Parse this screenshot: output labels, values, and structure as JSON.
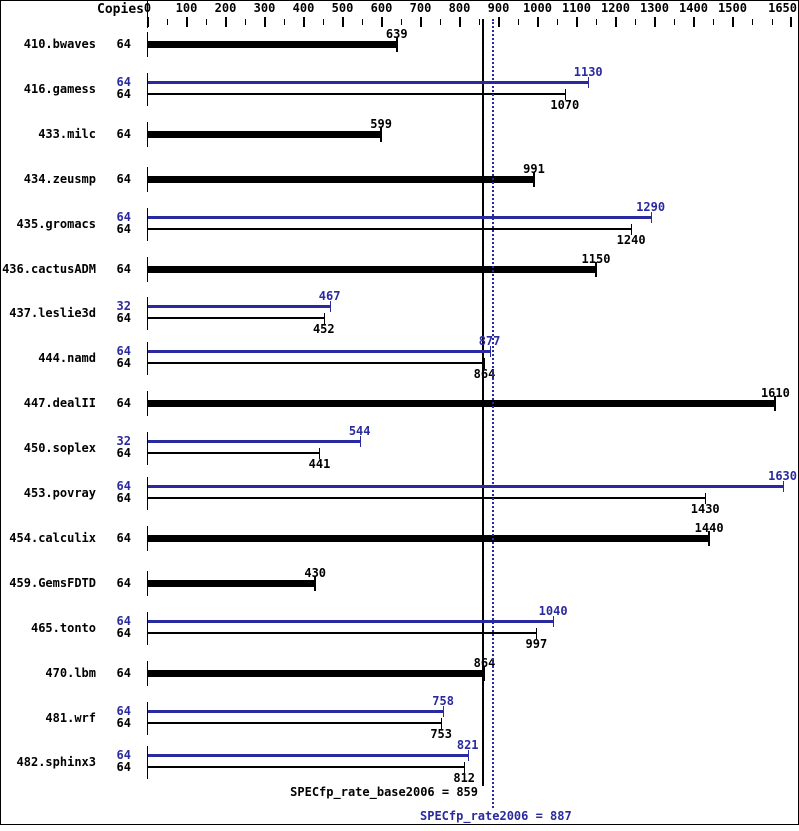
{
  "header": {
    "copies_label": "Copies"
  },
  "colors": {
    "base": "#000000",
    "peak": "#2a2aa0",
    "background": "#ffffff",
    "frame": "#000000"
  },
  "summary": {
    "base_text": "SPECfp_rate_base2006 = 859",
    "peak_text": "SPECfp_rate2006 = 887"
  },
  "chart_data": {
    "type": "bar",
    "orientation": "horizontal",
    "xlabel": "",
    "ylabel": "",
    "axis": {
      "min": 0,
      "max": 1650,
      "tick_labels": [
        0,
        100,
        200,
        300,
        400,
        500,
        600,
        700,
        800,
        900,
        1000,
        1100,
        1200,
        1300,
        1400,
        1500,
        1650
      ],
      "minor_step": 50
    },
    "copies_column_header": "Copies",
    "benchmarks": [
      {
        "name": "410.bwaves",
        "runs": [
          {
            "kind": "base",
            "copies": "64",
            "value": 639,
            "single": true
          }
        ]
      },
      {
        "name": "416.gamess",
        "runs": [
          {
            "kind": "peak",
            "copies": "64",
            "value": 1130
          },
          {
            "kind": "base",
            "copies": "64",
            "value": 1070
          }
        ]
      },
      {
        "name": "433.milc",
        "runs": [
          {
            "kind": "base",
            "copies": "64",
            "value": 599,
            "single": true
          }
        ]
      },
      {
        "name": "434.zeusmp",
        "runs": [
          {
            "kind": "base",
            "copies": "64",
            "value": 991,
            "single": true
          }
        ]
      },
      {
        "name": "435.gromacs",
        "runs": [
          {
            "kind": "peak",
            "copies": "64",
            "value": 1290
          },
          {
            "kind": "base",
            "copies": "64",
            "value": 1240
          }
        ]
      },
      {
        "name": "436.cactusADM",
        "runs": [
          {
            "kind": "base",
            "copies": "64",
            "value": 1150,
            "single": true
          }
        ]
      },
      {
        "name": "437.leslie3d",
        "runs": [
          {
            "kind": "peak",
            "copies": "32",
            "value": 467
          },
          {
            "kind": "base",
            "copies": "64",
            "value": 452
          }
        ]
      },
      {
        "name": "444.namd",
        "runs": [
          {
            "kind": "peak",
            "copies": "64",
            "value": 877
          },
          {
            "kind": "base",
            "copies": "64",
            "value": 864
          }
        ]
      },
      {
        "name": "447.dealII",
        "runs": [
          {
            "kind": "base",
            "copies": "64",
            "value": 1610,
            "single": true
          }
        ]
      },
      {
        "name": "450.soplex",
        "runs": [
          {
            "kind": "peak",
            "copies": "32",
            "value": 544
          },
          {
            "kind": "base",
            "copies": "64",
            "value": 441
          }
        ]
      },
      {
        "name": "453.povray",
        "runs": [
          {
            "kind": "peak",
            "copies": "64",
            "value": 1630
          },
          {
            "kind": "base",
            "copies": "64",
            "value": 1430
          }
        ]
      },
      {
        "name": "454.calculix",
        "runs": [
          {
            "kind": "base",
            "copies": "64",
            "value": 1440,
            "single": true
          }
        ]
      },
      {
        "name": "459.GemsFDTD",
        "runs": [
          {
            "kind": "base",
            "copies": "64",
            "value": 430,
            "single": true
          }
        ]
      },
      {
        "name": "465.tonto",
        "runs": [
          {
            "kind": "peak",
            "copies": "64",
            "value": 1040
          },
          {
            "kind": "base",
            "copies": "64",
            "value": 997
          }
        ]
      },
      {
        "name": "470.lbm",
        "runs": [
          {
            "kind": "base",
            "copies": "64",
            "value": 864,
            "single": true
          }
        ]
      },
      {
        "name": "481.wrf",
        "runs": [
          {
            "kind": "peak",
            "copies": "64",
            "value": 758
          },
          {
            "kind": "base",
            "copies": "64",
            "value": 753
          }
        ]
      },
      {
        "name": "482.sphinx3",
        "runs": [
          {
            "kind": "peak",
            "copies": "64",
            "value": 821
          },
          {
            "kind": "base",
            "copies": "64",
            "value": 812
          }
        ]
      }
    ],
    "reference_lines": [
      {
        "label": "SPECfp_rate_base2006",
        "value": 859,
        "line_style": "solid",
        "color": "#000000"
      },
      {
        "label": "SPECfp_rate2006",
        "value": 887,
        "line_style": "dotted",
        "color": "#2a2aa0"
      }
    ],
    "legend_position": "none",
    "grid": false
  }
}
